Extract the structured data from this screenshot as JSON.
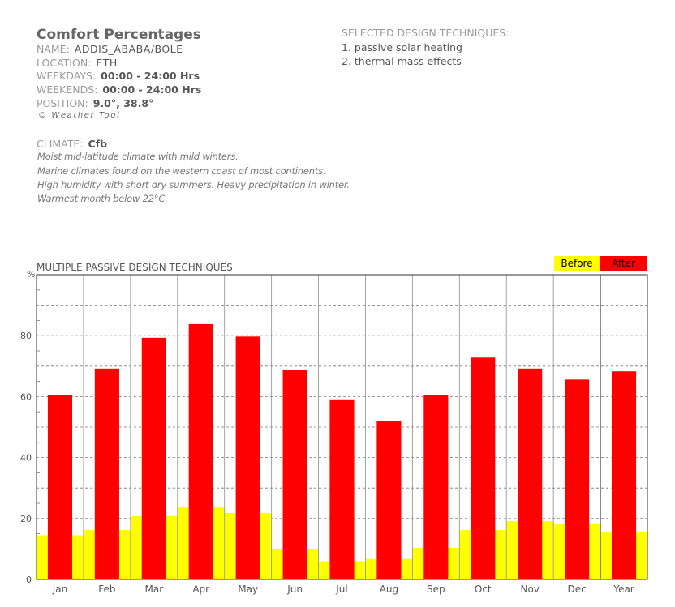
{
  "header": {
    "title": "Comfort Percentages",
    "rows": [
      {
        "label": "NAME:",
        "value": "ADDIS_ABABA/BOLE"
      },
      {
        "label": "LOCATION:",
        "value": "ETH"
      },
      {
        "label": "WEEKDAYS:",
        "value": "00:00 - 24:00 Hrs"
      },
      {
        "label": "WEEKENDS:",
        "value": "00:00 - 24:00 Hrs"
      },
      {
        "label": "POSITION:",
        "value": "9.0°, 38.8°"
      }
    ],
    "credit": "© Weather Tool"
  },
  "climate": {
    "label": "CLIMATE:",
    "code": "Cfb",
    "description": [
      "Moist mid-latitude climate with mild winters.",
      "Marine climates found on the western coast of most continents.",
      "High humidity with short dry summers. Heavy precipitation in winter.",
      "Warmest month below 22°C."
    ]
  },
  "selected": {
    "heading": "SELECTED DESIGN TECHNIQUES:",
    "items": [
      "1. passive solar heating",
      "2. thermal mass effects"
    ]
  },
  "chart_data": {
    "type": "bar",
    "title": "MULTIPLE PASSIVE DESIGN TECHNIQUES",
    "ylabel": "%",
    "ylim": [
      0,
      100
    ],
    "yticks": [
      "0",
      "20",
      "40",
      "60",
      "80"
    ],
    "grid": true,
    "legend_placement": "top-right",
    "categories": [
      "Jan",
      "Feb",
      "Mar",
      "Apr",
      "May",
      "Jun",
      "Jul",
      "Aug",
      "Sep",
      "Oct",
      "Nov",
      "Dec",
      "Year"
    ],
    "series": [
      {
        "name": "Before",
        "color": "#ffff00",
        "values": [
          14.5,
          16.2,
          20.8,
          23.6,
          21.8,
          10.1,
          6.0,
          6.7,
          10.4,
          16.2,
          19.1,
          18.3,
          15.6
        ]
      },
      {
        "name": "After",
        "color": "#ff0000",
        "values": [
          60.4,
          69.2,
          79.3,
          83.8,
          79.7,
          68.8,
          59.1,
          52.1,
          60.4,
          72.8,
          69.2,
          65.6,
          68.3
        ]
      }
    ]
  }
}
